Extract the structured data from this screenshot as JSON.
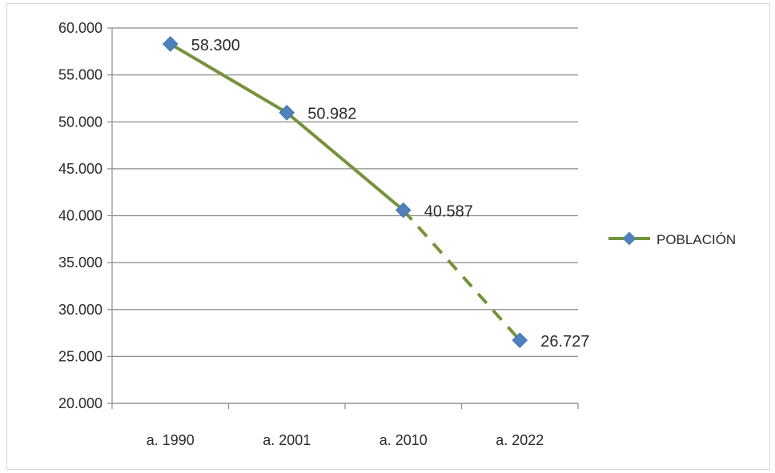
{
  "chart_data": {
    "type": "line",
    "categories": [
      "a. 1990",
      "a. 2001",
      "a. 2010",
      "a. 2022"
    ],
    "series": [
      {
        "name": "POBLACIÓN",
        "values": [
          58300,
          50982,
          40587,
          26727
        ],
        "data_labels": [
          "58.300",
          "50.982",
          "40.587",
          "26.727"
        ],
        "projected_from_index": 2,
        "color": "#76923c",
        "marker_color": "#4f81bd"
      }
    ],
    "ylim": [
      20000,
      60000
    ],
    "yticks": [
      20000,
      25000,
      30000,
      35000,
      40000,
      45000,
      50000,
      55000,
      60000
    ],
    "ytick_labels": [
      "20.000",
      "25.000",
      "30.000",
      "35.000",
      "40.000",
      "45.000",
      "50.000",
      "55.000",
      "60.000"
    ],
    "grid": true,
    "legend": "right",
    "title": "",
    "xlabel": "",
    "ylabel": ""
  }
}
